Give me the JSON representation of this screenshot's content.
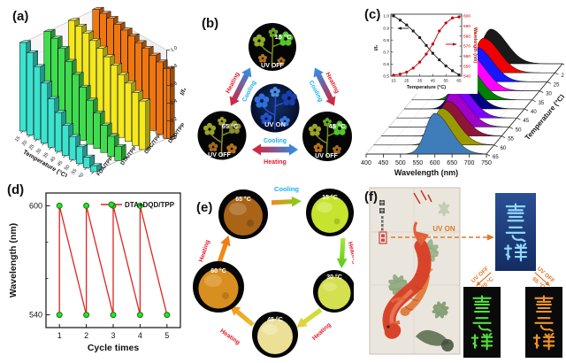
{
  "panels": {
    "a": {
      "label": "(a)"
    },
    "b": {
      "label": "(b)",
      "top": {
        "temp": "15 °C",
        "state": "UV OFF"
      },
      "left": {
        "temp": "65 °C",
        "state": "UV OFF"
      },
      "right": {
        "temp": "45 °C",
        "state": "UV OFF"
      },
      "center": {
        "state": "UV ON"
      },
      "arrow_left": {
        "outer": "Heating",
        "inner": "Cooling"
      },
      "arrow_right": {
        "outer": "Heating",
        "inner": "Cooling"
      },
      "arrow_bottom": {
        "top": "Cooling",
        "bottom": "Heating"
      },
      "heating_color": "#e8192c",
      "cooling_color": "#18b0f0",
      "flower_colors": {
        "uv_on_blue": "#2f6fe0",
        "cold_green": "#52c82a",
        "hot_olive": "#9aa32a",
        "warm_orange": "#b5721e"
      }
    },
    "c": {
      "label": "(c)"
    },
    "d": {
      "label": "(d)"
    },
    "e": {
      "label": "(e)",
      "steps": [
        {
          "temp": "65 °C",
          "powder_color": "#a96418"
        },
        {
          "temp": "15 °C",
          "powder_color": "#c6e42e"
        },
        {
          "temp": "30 °C",
          "powder_color": "#d4e04e"
        },
        {
          "temp": "45 °C",
          "powder_color": "#ecdf96"
        },
        {
          "temp": "60 °C",
          "powder_color": "#d98f1f"
        }
      ],
      "arrows": [
        {
          "label": "Cooling",
          "label_color": "#18b0f0"
        },
        {
          "label": "Heating",
          "label_color": "#e8192c"
        },
        {
          "label": "Heating",
          "label_color": "#e8192c"
        },
        {
          "label": "Heating",
          "label_color": "#e8192c"
        },
        {
          "label": "Heating",
          "label_color": "#e8192c"
        }
      ]
    },
    "f": {
      "label": "(f)",
      "uv_on": "UV ON",
      "uv_off_left_line1": "UV OFF",
      "uv_off_left_line2": "20 °C",
      "uv_off_right_line1": "UV OFF",
      "uv_off_right_line2": "65 °C",
      "calligraphy_text": "雪云祥",
      "uv_on_color": "#e0782a",
      "glow_blue": "#8fd8ff",
      "glow_green": "#52e03c",
      "glow_orange": "#f0952a"
    }
  },
  "chart_data": [
    {
      "panel": "a",
      "type": "bar",
      "projection": "3d",
      "categories": [
        15,
        20,
        25,
        30,
        35,
        40,
        45,
        50,
        55,
        60,
        65
      ],
      "xlabel": "Temperature (°C)",
      "zlabel": "I/I₀",
      "zlim": [
        0,
        1
      ],
      "zticks": [
        "0.0",
        "0.2",
        "0.4",
        "0.6",
        "0.8",
        "1.0"
      ],
      "series": [
        {
          "name": "FDA/TPP",
          "color": "#3be3cf",
          "values": [
            1.0,
            0.93,
            0.82,
            0.68,
            0.55,
            0.44,
            0.34,
            0.26,
            0.19,
            0.12,
            0.07
          ]
        },
        {
          "name": "DTA/TPP",
          "color": "#3edc4e",
          "values": [
            1.0,
            0.97,
            0.9,
            0.8,
            0.7,
            0.6,
            0.5,
            0.4,
            0.31,
            0.23,
            0.16
          ]
        },
        {
          "name": "DBC/TPP",
          "color": "#f4e81f",
          "values": [
            1.0,
            0.98,
            0.95,
            0.91,
            0.87,
            0.82,
            0.77,
            0.71,
            0.66,
            0.6,
            0.55
          ]
        },
        {
          "name": "DQD/TPP",
          "color": "#f0760f",
          "values": [
            1.0,
            1.0,
            0.99,
            0.97,
            0.95,
            0.93,
            0.9,
            0.88,
            0.85,
            0.82,
            0.79
          ]
        }
      ]
    },
    {
      "panel": "c",
      "type": "area",
      "projection": "waterfall3d",
      "xlabel": "Wavelength (nm)",
      "xlim": [
        400,
        750
      ],
      "x_ticks": [
        400,
        450,
        500,
        550,
        600,
        650,
        700,
        750
      ],
      "depth_label": "Temperature (°C)",
      "temperatures": [
        15,
        20,
        25,
        30,
        35,
        40,
        45,
        50,
        55,
        60,
        65
      ],
      "ridge_colors": [
        "#1a1a1a",
        "#f00000",
        "#1616ff",
        "#ff00ff",
        "#008000",
        "#000080",
        "#7d00ff",
        "#a000c8",
        "#8e1537",
        "#9a9a00",
        "#3f7cba"
      ],
      "peak_wavelengths": [
        541,
        542,
        544,
        548,
        554,
        562,
        572,
        585,
        593,
        598,
        599
      ],
      "amplitudes": [
        0.85,
        0.85,
        0.85,
        0.85,
        0.85,
        0.85,
        0.85,
        0.85,
        0.85,
        0.9,
        1.0
      ]
    },
    {
      "panel": "c-inset",
      "type": "line",
      "x": [
        15,
        20,
        25,
        30,
        35,
        40,
        45,
        50,
        55,
        60,
        65
      ],
      "xlabel": "Temperature (°C)",
      "x_ticks": [
        15,
        25,
        35,
        45,
        55,
        65
      ],
      "left_axis": {
        "label": "I/I₀",
        "lim": [
          0.5,
          1.0
        ],
        "ticks": [
          "0.5",
          "0.6",
          "0.7",
          "0.8",
          "0.9",
          "1.0"
        ]
      },
      "right_axis": {
        "label": "Wavelength (nm)",
        "lim": [
          540,
          600
        ],
        "ticks": [
          540,
          550,
          560,
          570,
          580,
          590,
          600
        ],
        "color": "#c00000"
      },
      "series": [
        {
          "name": "I/I₀",
          "axis": "left",
          "color": "#1a1a1a",
          "marker": "square",
          "values": [
            1.0,
            0.965,
            0.925,
            0.875,
            0.82,
            0.755,
            0.69,
            0.635,
            0.585,
            0.545,
            0.51
          ]
        },
        {
          "name": "Wavelength",
          "axis": "right",
          "color": "#c00000",
          "marker": "circle",
          "values": [
            541,
            542,
            544,
            548,
            554,
            562,
            572,
            585,
            593,
            598,
            599
          ]
        }
      ]
    },
    {
      "panel": "d",
      "type": "line",
      "xlabel": "Cycle times",
      "ylabel": "Wavelength (nm)",
      "x_ticks": [
        1,
        2,
        3,
        4,
        5
      ],
      "y_ticks": [
        540,
        600
      ],
      "xlim": [
        0.5,
        5.5
      ],
      "ylim": [
        533,
        607
      ],
      "legend": "DTA+DQD/TPP",
      "line_color": "#e32222",
      "marker_color": "#2ce02c",
      "marker_edge": "#0f7a0f",
      "points": [
        [
          1,
          540
        ],
        [
          1,
          600
        ],
        [
          2,
          540
        ],
        [
          2,
          600
        ],
        [
          3,
          540
        ],
        [
          3,
          600
        ],
        [
          4,
          540
        ],
        [
          4,
          600
        ],
        [
          5,
          540
        ]
      ]
    }
  ]
}
